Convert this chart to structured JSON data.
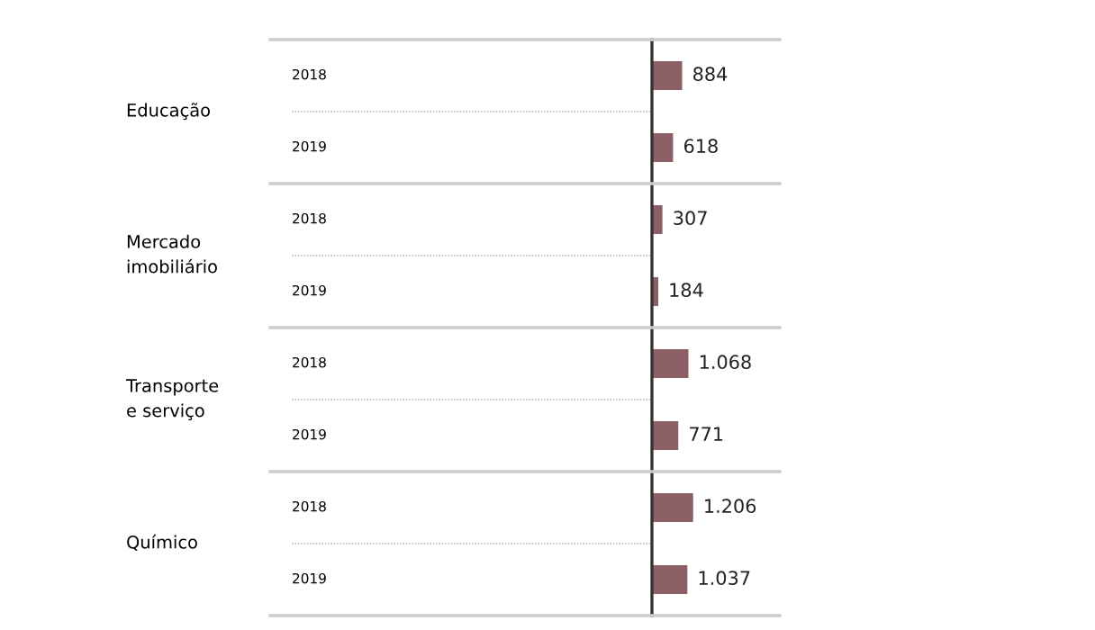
{
  "chart_data": {
    "type": "bar",
    "orientation": "horizontal",
    "categories": [
      "2018",
      "2019",
      "2018",
      "2019",
      "2018",
      "2019",
      "2018",
      "2019"
    ],
    "values": [
      884,
      618,
      307,
      184,
      1068,
      771,
      1206,
      1037
    ],
    "value_labels": [
      "884",
      "618",
      "307",
      "184",
      "1.068",
      "771",
      "1.206",
      "1.037"
    ],
    "color": "#8c5f66",
    "annotations": [
      "Educação",
      "Mercado\nimobiliário",
      "Transporte\ne serviço",
      "Químico"
    ]
  }
}
